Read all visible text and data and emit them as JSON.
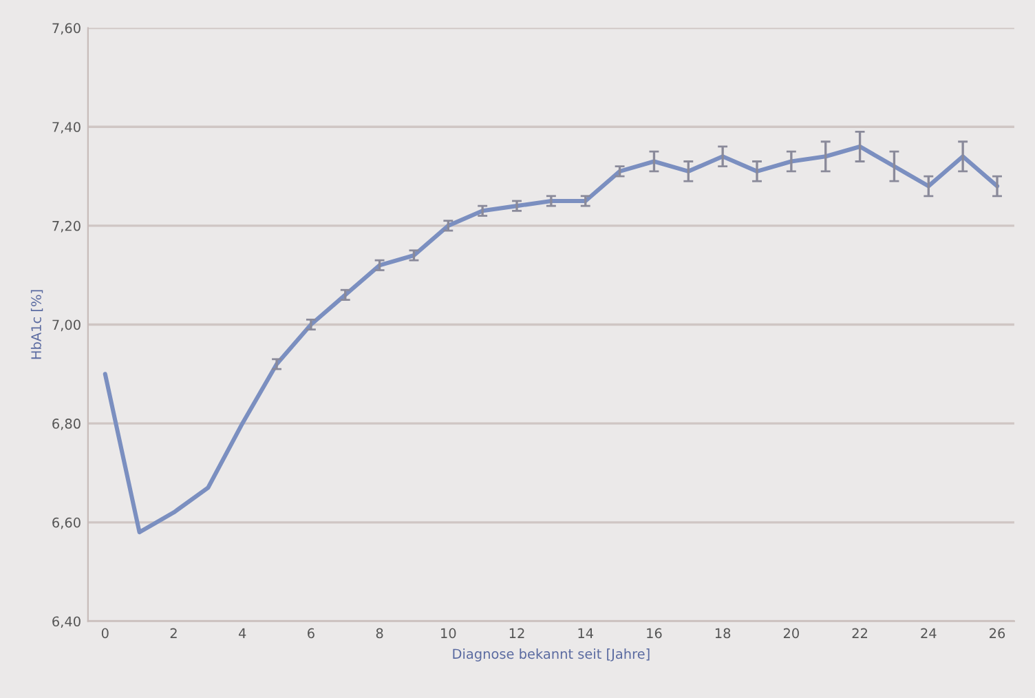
{
  "chart_data": {
    "type": "line",
    "xlabel": "Diagnose bekannt seit [Jahre]",
    "ylabel": "HbA1c [%]",
    "x": [
      0,
      1,
      2,
      3,
      4,
      5,
      6,
      7,
      8,
      9,
      10,
      11,
      12,
      13,
      14,
      15,
      16,
      17,
      18,
      19,
      20,
      21,
      22,
      23,
      24,
      25,
      26
    ],
    "series": [
      {
        "color": "#7b8fc0",
        "values": [
          6.9,
          6.58,
          6.62,
          6.67,
          6.8,
          6.92,
          7.0,
          7.06,
          7.12,
          7.14,
          7.2,
          7.23,
          7.24,
          7.25,
          7.25,
          7.31,
          7.33,
          7.31,
          7.34,
          7.31,
          7.33,
          7.34,
          7.36,
          7.32,
          7.28,
          7.34,
          7.28
        ],
        "errors": [
          null,
          null,
          null,
          null,
          null,
          0.01,
          0.01,
          0.01,
          0.01,
          0.01,
          0.01,
          0.01,
          0.01,
          0.01,
          0.01,
          0.01,
          0.02,
          0.02,
          0.02,
          0.02,
          0.02,
          0.03,
          0.03,
          0.03,
          0.02,
          0.03,
          0.02
        ]
      }
    ],
    "xlim": [
      -0.5,
      26.5
    ],
    "xticks": [
      0,
      2,
      4,
      6,
      8,
      10,
      12,
      14,
      16,
      18,
      20,
      22,
      24,
      26
    ],
    "ylim": [
      6.4,
      7.6
    ],
    "yticks": [
      {
        "value": 6.4,
        "label": "6,40"
      },
      {
        "value": 6.6,
        "label": "6,60"
      },
      {
        "value": 6.8,
        "label": "6,80"
      },
      {
        "value": 7.0,
        "label": "7,00"
      },
      {
        "value": 7.2,
        "label": "7,20"
      },
      {
        "value": 7.4,
        "label": "7,40"
      },
      {
        "value": 7.6,
        "label": "7,60"
      }
    ],
    "grid": "y",
    "legend": false,
    "marker": "none",
    "line_style": "solid"
  }
}
